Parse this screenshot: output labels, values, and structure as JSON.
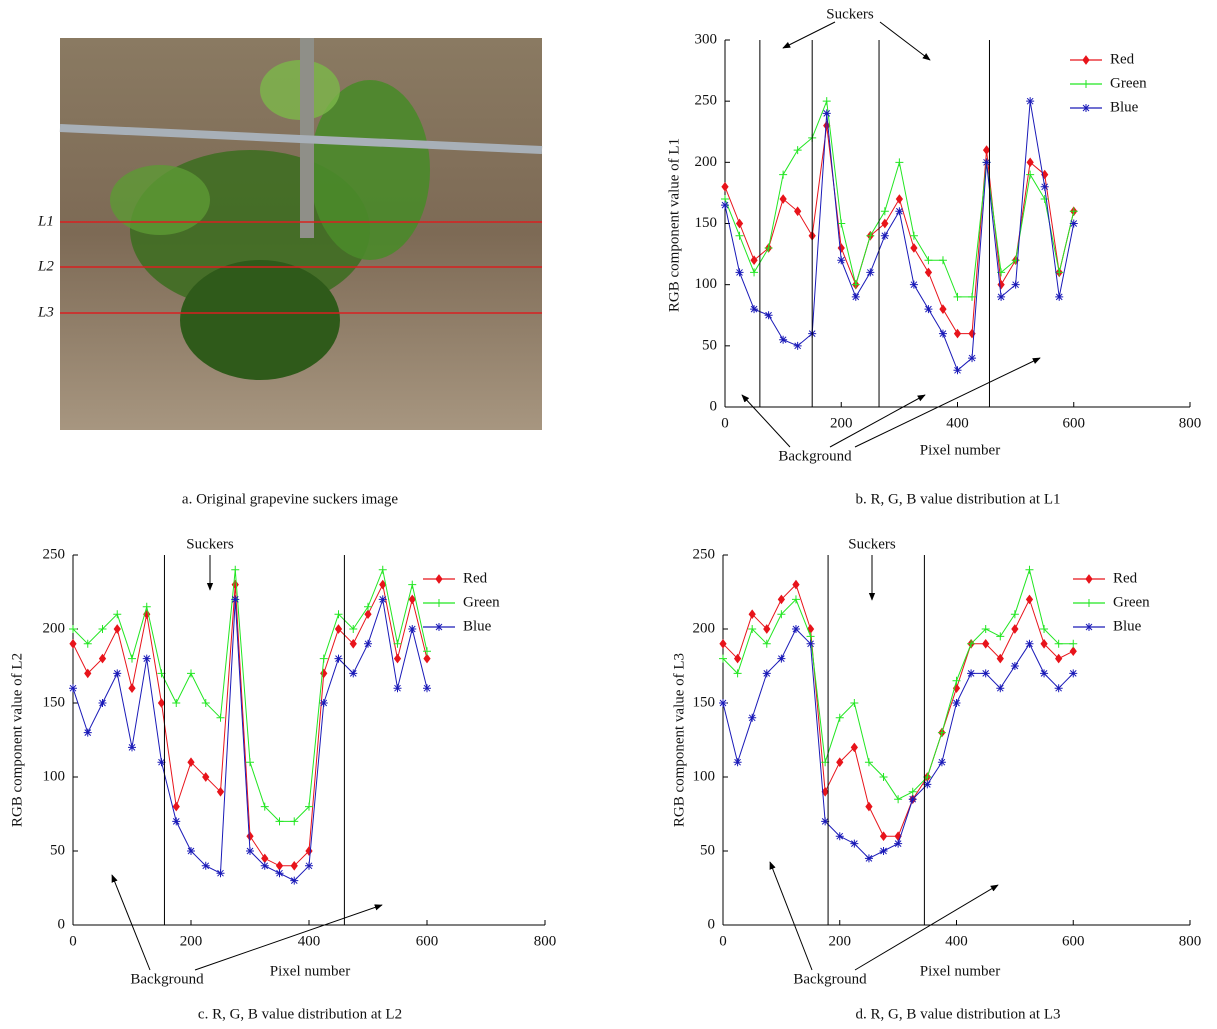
{
  "image": {
    "caption": "a. Original grapevine suckers image",
    "line_labels": [
      "L1",
      "L2",
      "L3"
    ]
  },
  "chart_data": [
    {
      "type": "line",
      "caption": "b. R, G, B value distribution at L1",
      "xlabel": "Pixel number",
      "ylabel": "RGB component value of L1",
      "annotations": [
        "Suckers",
        "Background"
      ],
      "vlines": [
        60,
        150,
        265,
        455
      ],
      "xlim": [
        0,
        800
      ],
      "xticks": [
        0,
        200,
        400,
        600,
        800
      ],
      "ylim": [
        0,
        300
      ],
      "yticks": [
        0,
        50,
        100,
        150,
        200,
        250,
        300
      ],
      "x": [
        0,
        25,
        50,
        75,
        100,
        125,
        150,
        175,
        200,
        225,
        250,
        275,
        300,
        325,
        350,
        375,
        400,
        425,
        450,
        475,
        500,
        525,
        550,
        575,
        600
      ],
      "series": [
        {
          "name": "Red",
          "color": "#e8141b",
          "marker": "diamond",
          "values": [
            180,
            150,
            120,
            130,
            170,
            160,
            140,
            230,
            130,
            100,
            140,
            150,
            170,
            130,
            110,
            80,
            60,
            60,
            210,
            100,
            120,
            200,
            190,
            110,
            160
          ]
        },
        {
          "name": "Green",
          "color": "#22e622",
          "marker": "plus",
          "values": [
            170,
            140,
            110,
            130,
            190,
            210,
            220,
            250,
            150,
            100,
            140,
            160,
            200,
            140,
            120,
            120,
            90,
            90,
            200,
            110,
            120,
            190,
            170,
            110,
            160
          ]
        },
        {
          "name": "Blue",
          "color": "#1a1ab8",
          "marker": "star",
          "values": [
            165,
            110,
            80,
            75,
            55,
            50,
            60,
            240,
            120,
            90,
            110,
            140,
            160,
            100,
            80,
            60,
            30,
            40,
            200,
            90,
            100,
            250,
            180,
            90,
            150
          ]
        }
      ]
    },
    {
      "type": "line",
      "caption": "c. R, G, B value distribution at L2",
      "xlabel": "Pixel number",
      "ylabel": "RGB component value of L2",
      "annotations": [
        "Suckers",
        "Background"
      ],
      "vlines": [
        155,
        460
      ],
      "xlim": [
        0,
        800
      ],
      "xticks": [
        0,
        200,
        400,
        600,
        800
      ],
      "ylim": [
        0,
        250
      ],
      "yticks": [
        0,
        50,
        100,
        150,
        200,
        250
      ],
      "x": [
        0,
        25,
        50,
        75,
        100,
        125,
        150,
        175,
        200,
        225,
        250,
        275,
        300,
        325,
        350,
        375,
        400,
        425,
        450,
        475,
        500,
        525,
        550,
        575,
        600
      ],
      "series": [
        {
          "name": "Red",
          "color": "#e8141b",
          "marker": "diamond",
          "values": [
            190,
            170,
            180,
            200,
            160,
            210,
            150,
            80,
            110,
            100,
            90,
            230,
            60,
            45,
            40,
            40,
            50,
            170,
            200,
            190,
            210,
            230,
            180,
            220,
            180
          ]
        },
        {
          "name": "Green",
          "color": "#22e622",
          "marker": "plus",
          "values": [
            200,
            190,
            200,
            210,
            180,
            215,
            170,
            150,
            170,
            150,
            140,
            240,
            110,
            80,
            70,
            70,
            80,
            180,
            210,
            200,
            215,
            240,
            190,
            230,
            185
          ]
        },
        {
          "name": "Blue",
          "color": "#1a1ab8",
          "marker": "star",
          "values": [
            160,
            130,
            150,
            170,
            120,
            180,
            110,
            70,
            50,
            40,
            35,
            220,
            50,
            40,
            35,
            30,
            40,
            150,
            180,
            170,
            190,
            220,
            160,
            200,
            160
          ]
        }
      ]
    },
    {
      "type": "line",
      "caption": "d. R, G, B value distribution at L3",
      "xlabel": "Pixel number",
      "ylabel": "RGB component value of L3",
      "annotations": [
        "Suckers",
        "Background"
      ],
      "vlines": [
        180,
        345
      ],
      "xlim": [
        0,
        800
      ],
      "xticks": [
        0,
        200,
        400,
        600,
        800
      ],
      "ylim": [
        0,
        250
      ],
      "yticks": [
        0,
        50,
        100,
        150,
        200,
        250
      ],
      "x": [
        0,
        25,
        50,
        75,
        100,
        125,
        150,
        175,
        200,
        225,
        250,
        275,
        300,
        325,
        350,
        375,
        400,
        425,
        450,
        475,
        500,
        525,
        550,
        575,
        600
      ],
      "series": [
        {
          "name": "Red",
          "color": "#e8141b",
          "marker": "diamond",
          "values": [
            190,
            180,
            210,
            200,
            220,
            230,
            200,
            90,
            110,
            120,
            80,
            60,
            60,
            85,
            100,
            130,
            160,
            190,
            190,
            180,
            200,
            220,
            190,
            180,
            185
          ]
        },
        {
          "name": "Green",
          "color": "#22e622",
          "marker": "plus",
          "values": [
            180,
            170,
            200,
            190,
            210,
            220,
            195,
            110,
            140,
            150,
            110,
            100,
            85,
            90,
            100,
            130,
            165,
            190,
            200,
            195,
            210,
            240,
            200,
            190,
            190
          ]
        },
        {
          "name": "Blue",
          "color": "#1a1ab8",
          "marker": "star",
          "values": [
            150,
            110,
            140,
            170,
            180,
            200,
            190,
            70,
            60,
            55,
            45,
            50,
            55,
            85,
            95,
            110,
            150,
            170,
            170,
            160,
            175,
            190,
            170,
            160,
            170
          ]
        }
      ]
    }
  ]
}
